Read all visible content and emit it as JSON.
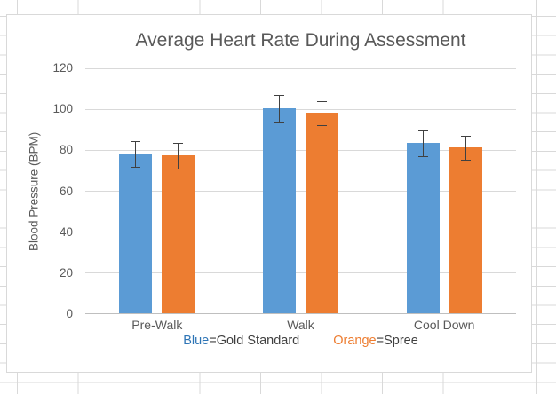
{
  "chart_data": {
    "type": "bar",
    "title": "Average Heart Rate During Assessment",
    "ylabel": "Blood Pressure (BPM)",
    "xlabel": "",
    "categories": [
      "Pre-Walk",
      "Walk",
      "Cool Down"
    ],
    "series": [
      {
        "name": "Gold Standard",
        "key": "blue",
        "color": "#5B9BD5",
        "values": [
          78,
          100,
          83
        ],
        "errors": [
          6.5,
          7,
          6.5
        ]
      },
      {
        "name": "Spree",
        "key": "orange",
        "color": "#ED7D31",
        "values": [
          77,
          98,
          81
        ],
        "errors": [
          6.5,
          6,
          6
        ]
      }
    ],
    "ylim": [
      0,
      120
    ],
    "yticks": [
      0,
      20,
      40,
      60,
      80,
      100,
      120
    ],
    "ytick_interval": 20,
    "grid": true,
    "legend_position": "bottom"
  },
  "legend": {
    "blue_key": "Blue",
    "blue_rest": "=Gold Standard",
    "orange_key": "Orange",
    "orange_rest": "=Spree"
  },
  "colors": {
    "series_blue": "#5B9BD5",
    "series_orange": "#ED7D31",
    "legend_blue_text": "#2E75B6",
    "legend_orange_text": "#ED7D31",
    "chart_text": "#595959",
    "gridline": "#D9D9D9",
    "axis_line": "#BFBFBF",
    "error_bar": "#404040",
    "chart_border": "#D9D9D9",
    "excel_gridline": "#D9D9D9"
  }
}
